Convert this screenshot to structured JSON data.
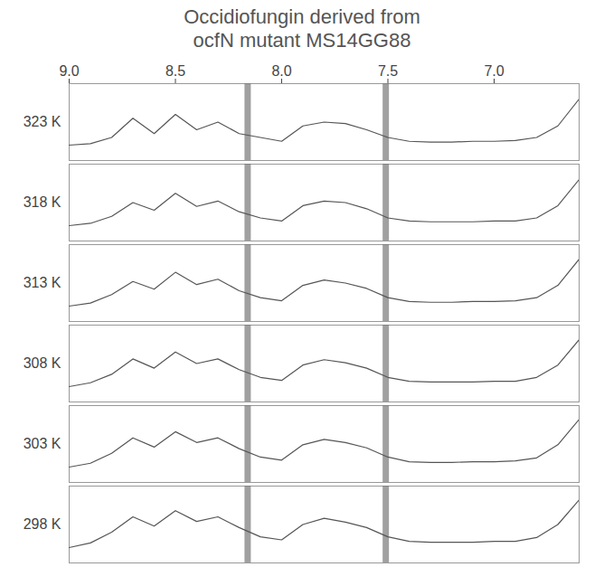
{
  "chart_data": {
    "type": "line",
    "title": "Occidiofungin derived from ocfN mutant MS14GG88",
    "x": [
      9.0,
      8.9,
      8.8,
      8.7,
      8.6,
      8.5,
      8.4,
      8.3,
      8.2,
      8.1,
      8.0,
      7.9,
      7.8,
      7.7,
      7.6,
      7.5,
      7.4,
      7.3,
      7.2,
      7.1,
      7.0,
      6.9,
      6.8,
      6.7,
      6.6
    ],
    "xlim": [
      9.0,
      6.6
    ],
    "xticks": [
      {
        "value": 9,
        "label": "9.0"
      },
      8.5,
      {
        "value": 8,
        "label": "8.0"
      },
      7.5,
      {
        "value": 7,
        "label": "7.0"
      }
    ],
    "ylim": [
      0,
      10
    ],
    "tick_labels": "x",
    "grid": false,
    "bands": [
      8.16,
      7.51
    ],
    "series": [
      {
        "name": "323 K",
        "color": "#555555",
        "values": [
          2,
          2.2,
          3,
          5.5,
          3.5,
          6,
          4,
          5,
          3.5,
          3,
          2.5,
          4.5,
          5,
          4.8,
          4,
          3,
          2.5,
          2.4,
          2.4,
          2.5,
          2.5,
          2.6,
          3,
          4.5,
          8
        ]
      },
      {
        "name": "318 K",
        "color": "#555555",
        "values": [
          2,
          2.3,
          3.2,
          5,
          4,
          6.2,
          4.5,
          5.2,
          3.8,
          3,
          2.6,
          4.6,
          5.2,
          5,
          4.2,
          3,
          2.6,
          2.5,
          2.5,
          2.5,
          2.6,
          2.6,
          3,
          4.6,
          8
        ]
      },
      {
        "name": "313 K",
        "color": "#555555",
        "values": [
          2,
          2.4,
          3.5,
          5.2,
          4.2,
          6.4,
          4.8,
          5.5,
          4,
          3.1,
          2.7,
          4.7,
          5.4,
          5,
          4.3,
          3.1,
          2.6,
          2.5,
          2.5,
          2.6,
          2.6,
          2.7,
          3.1,
          4.7,
          8.1
        ]
      },
      {
        "name": "308 K",
        "color": "#555555",
        "values": [
          2,
          2.5,
          3.6,
          5.6,
          4.4,
          6.5,
          5,
          5.6,
          4.2,
          3.2,
          2.8,
          4.8,
          5.5,
          5.1,
          4.4,
          3.2,
          2.7,
          2.6,
          2.6,
          2.6,
          2.7,
          2.7,
          3.2,
          4.8,
          8.1
        ]
      },
      {
        "name": "303 K",
        "color": "#555555",
        "values": [
          2,
          2.5,
          3.8,
          5.8,
          4.6,
          6.6,
          5.2,
          5.8,
          4.4,
          3.3,
          2.9,
          4.9,
          5.6,
          5.2,
          4.5,
          3.3,
          2.7,
          2.6,
          2.6,
          2.7,
          2.7,
          2.8,
          3.2,
          4.9,
          8.2
        ]
      },
      {
        "name": "298 K",
        "color": "#555555",
        "values": [
          2,
          2.6,
          4,
          6,
          4.8,
          6.8,
          5.4,
          6,
          4.6,
          3.4,
          3,
          5,
          5.8,
          5.3,
          4.6,
          3.4,
          2.8,
          2.7,
          2.7,
          2.7,
          2.8,
          2.8,
          3.3,
          5,
          8.2
        ]
      }
    ]
  }
}
